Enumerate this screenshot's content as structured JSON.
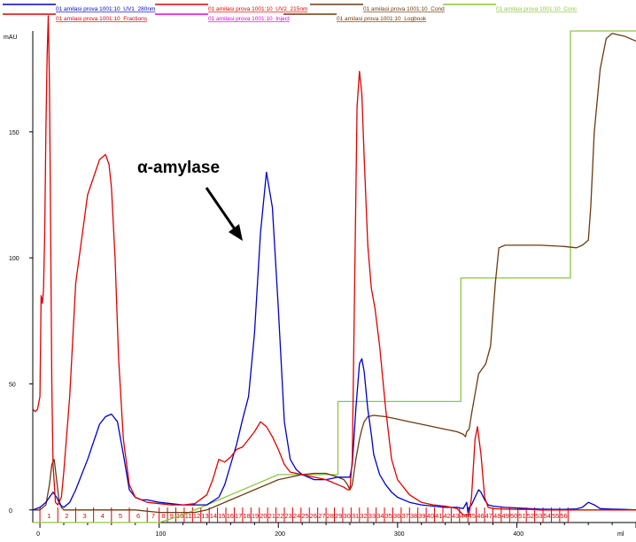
{
  "chart_data": {
    "type": "line",
    "ylabel": "mAU",
    "xlabel": "ml",
    "xlim": [
      -6,
      500
    ],
    "ylim": [
      -5,
      190
    ],
    "x_ticks": [
      0,
      100,
      200,
      300,
      400
    ],
    "y_ticks": [
      0,
      50,
      100,
      150
    ],
    "legend": [
      {
        "name": "01 amilasi prova 1001:10_UV1_280nm",
        "color": "#0000cc"
      },
      {
        "name": "01 amilasi prova 1001:10_UV2_215nm",
        "color": "#e00000"
      },
      {
        "name": "01 amilasi prova 1001:10_Cond",
        "color": "#6b3a10"
      },
      {
        "name": "01 amilasi prova 1001:10_Conc",
        "color": "#8cc63f"
      },
      {
        "name": "01 amilasi prova 1001:10_Fractions",
        "color": "#e00000"
      },
      {
        "name": "01 amilasi prova 1001:10_Inject",
        "color": "#e000e0"
      },
      {
        "name": "01 amilasi prova 1001:10_Logbook",
        "color": "#6b3a10"
      }
    ],
    "annotation": {
      "text": "α-amylase",
      "points_to": {
        "x": 191,
        "y": 114
      }
    },
    "series": [
      {
        "name": "01 amilasi prova 1001:10_UV1_280nm",
        "color": "#0000cc",
        "x": [
          -6,
          0,
          5,
          8,
          11,
          14,
          17,
          20,
          25,
          30,
          40,
          50,
          55,
          60,
          65,
          70,
          75,
          80,
          85,
          90,
          100,
          110,
          120,
          130,
          140,
          150,
          155,
          160,
          165,
          170,
          175,
          180,
          185,
          190,
          195,
          200,
          205,
          210,
          215,
          220,
          230,
          240,
          250,
          260,
          262,
          265,
          268,
          270,
          272,
          275,
          278,
          280,
          285,
          290,
          295,
          300,
          310,
          320,
          330,
          340,
          350,
          355,
          358,
          359,
          360,
          362,
          365,
          368,
          370,
          373,
          376,
          380,
          390,
          400,
          410,
          420,
          430,
          440,
          450,
          455,
          460,
          465,
          470,
          480,
          490,
          500
        ],
        "y": [
          0,
          1,
          3,
          5,
          7,
          5,
          2,
          1,
          3,
          8,
          20,
          34,
          37,
          38,
          35,
          22,
          8,
          5,
          4,
          4,
          3,
          2.5,
          2,
          2,
          2,
          5,
          10,
          18,
          26,
          36,
          45,
          70,
          110,
          134,
          120,
          80,
          35,
          20,
          16,
          14,
          12,
          12,
          13,
          13,
          18,
          40,
          58,
          60,
          55,
          40,
          30,
          22,
          14,
          10,
          7,
          5,
          3,
          2,
          1.5,
          1,
          1,
          0.5,
          3,
          -1,
          1,
          2,
          5,
          8,
          7,
          4,
          2,
          1.5,
          1,
          0.8,
          0.5,
          0.3,
          0.2,
          0.2,
          0.4,
          1,
          3,
          2,
          0.5,
          0.3,
          0.2,
          0
        ]
      },
      {
        "name": "01 amilasi prova 1001:10_UV2_215nm",
        "color": "#e00000",
        "x": [
          -6,
          -4,
          -2,
          0,
          1,
          2,
          3,
          4,
          5,
          6,
          7,
          8,
          9,
          10,
          11,
          13,
          15,
          18,
          20,
          25,
          30,
          40,
          50,
          55,
          58,
          60,
          63,
          66,
          70,
          75,
          80,
          90,
          100,
          110,
          120,
          130,
          140,
          145,
          150,
          155,
          160,
          165,
          170,
          175,
          180,
          185,
          190,
          195,
          200,
          205,
          210,
          220,
          230,
          240,
          250,
          255,
          258,
          260,
          262,
          264,
          266,
          268,
          270,
          272,
          275,
          278,
          281,
          285,
          290,
          295,
          300,
          310,
          320,
          330,
          340,
          350,
          355,
          360,
          362,
          365,
          367,
          370,
          373,
          376,
          380,
          390,
          400,
          410,
          420,
          430,
          440,
          450,
          460,
          470,
          480,
          490,
          500
        ],
        "y": [
          40,
          39,
          40,
          45,
          85,
          82,
          87,
          110,
          150,
          180,
          196,
          170,
          110,
          50,
          18,
          3,
          2,
          5,
          15,
          45,
          90,
          125,
          139,
          141,
          137,
          128,
          100,
          60,
          28,
          10,
          5,
          3,
          2.5,
          2,
          2,
          2.5,
          6,
          12,
          20,
          19,
          21,
          24,
          25,
          28,
          31,
          35,
          33,
          29,
          24,
          18,
          15,
          14,
          13,
          12,
          10,
          9,
          8,
          8,
          20,
          90,
          160,
          174,
          165,
          140,
          105,
          88,
          80,
          65,
          40,
          20,
          12,
          6,
          3,
          2,
          1.5,
          0.5,
          -2,
          -2,
          5,
          28,
          33,
          22,
          5,
          1,
          0.5,
          0.3,
          0.2,
          0.2,
          0,
          0,
          0,
          0,
          0,
          0,
          0,
          0,
          0
        ]
      },
      {
        "name": "01 amilasi prova 1001:10_Cond",
        "color": "#6b3a10",
        "x": [
          -6,
          0,
          5,
          8,
          10,
          12,
          14,
          16,
          18,
          20,
          25,
          30,
          40,
          60,
          80,
          100,
          120,
          130,
          140,
          150,
          160,
          170,
          180,
          190,
          200,
          210,
          220,
          230,
          240,
          250,
          255,
          258,
          260,
          262,
          265,
          268,
          270,
          272,
          275,
          280,
          290,
          300,
          310,
          320,
          340,
          350,
          355,
          357,
          358,
          360,
          362,
          365,
          368,
          371,
          374,
          378,
          382,
          385,
          390,
          400,
          420,
          440,
          450,
          455,
          460,
          462,
          465,
          470,
          475,
          480,
          490,
          500
        ],
        "y": [
          0,
          0,
          2,
          10,
          18,
          20,
          12,
          4,
          1,
          0,
          0,
          0,
          0,
          0,
          0,
          -1,
          -1,
          -1,
          0,
          2,
          4,
          6,
          8,
          10,
          12,
          13,
          14,
          14.5,
          14.5,
          13,
          12,
          10,
          8,
          10,
          20,
          28,
          32,
          35,
          37,
          37.5,
          37,
          36,
          35,
          34,
          32,
          31,
          30,
          29,
          31,
          32,
          38,
          46,
          54,
          56,
          58,
          65,
          90,
          104,
          105,
          105,
          105,
          104.5,
          104,
          105,
          107,
          120,
          150,
          175,
          187,
          189,
          188,
          186
        ]
      },
      {
        "name": "01 amilasi prova 1001:10_Conc",
        "color": "#8cc63f",
        "x": [
          -6,
          100,
          120,
          140,
          160,
          180,
          200,
          250,
          250,
          270,
          285,
          305,
          319,
          353,
          353,
          386,
          411,
          445,
          445,
          500
        ],
        "y": [
          -5,
          -5,
          -2,
          2,
          6,
          10,
          14,
          14,
          43,
          43,
          43,
          43,
          43,
          43,
          92,
          92,
          92,
          92,
          190,
          190
        ]
      }
    ],
    "fractions": [
      "1",
      "2",
      "3",
      "4",
      "5",
      "6",
      "7",
      "8",
      "9",
      "10",
      "11",
      "12",
      "13",
      "14",
      "15",
      "16",
      "17",
      "18",
      "19",
      "20",
      "21",
      "22",
      "23",
      "24",
      "25",
      "26",
      "27",
      "28",
      "29",
      "30",
      "31",
      "32",
      "33",
      "34",
      "35",
      "36",
      "37",
      "38",
      "39",
      "40",
      "41",
      "42",
      "43",
      "44",
      "45",
      "46",
      "47",
      "48",
      "49",
      "50",
      "51",
      "52",
      "53",
      "54",
      "55",
      "56"
    ],
    "fraction_boundaries": [
      0,
      15,
      30,
      45,
      60,
      75,
      90,
      100,
      107,
      114,
      121,
      128,
      135,
      142,
      149,
      156,
      163,
      170,
      177,
      184,
      191,
      198,
      205,
      212,
      219,
      226,
      233,
      240,
      247,
      254,
      261,
      268,
      275,
      282,
      289,
      296,
      303,
      310,
      317,
      324,
      331,
      338,
      345,
      352,
      359,
      366,
      373,
      380,
      387,
      394,
      401,
      408,
      415,
      422,
      429,
      436,
      443
    ]
  }
}
